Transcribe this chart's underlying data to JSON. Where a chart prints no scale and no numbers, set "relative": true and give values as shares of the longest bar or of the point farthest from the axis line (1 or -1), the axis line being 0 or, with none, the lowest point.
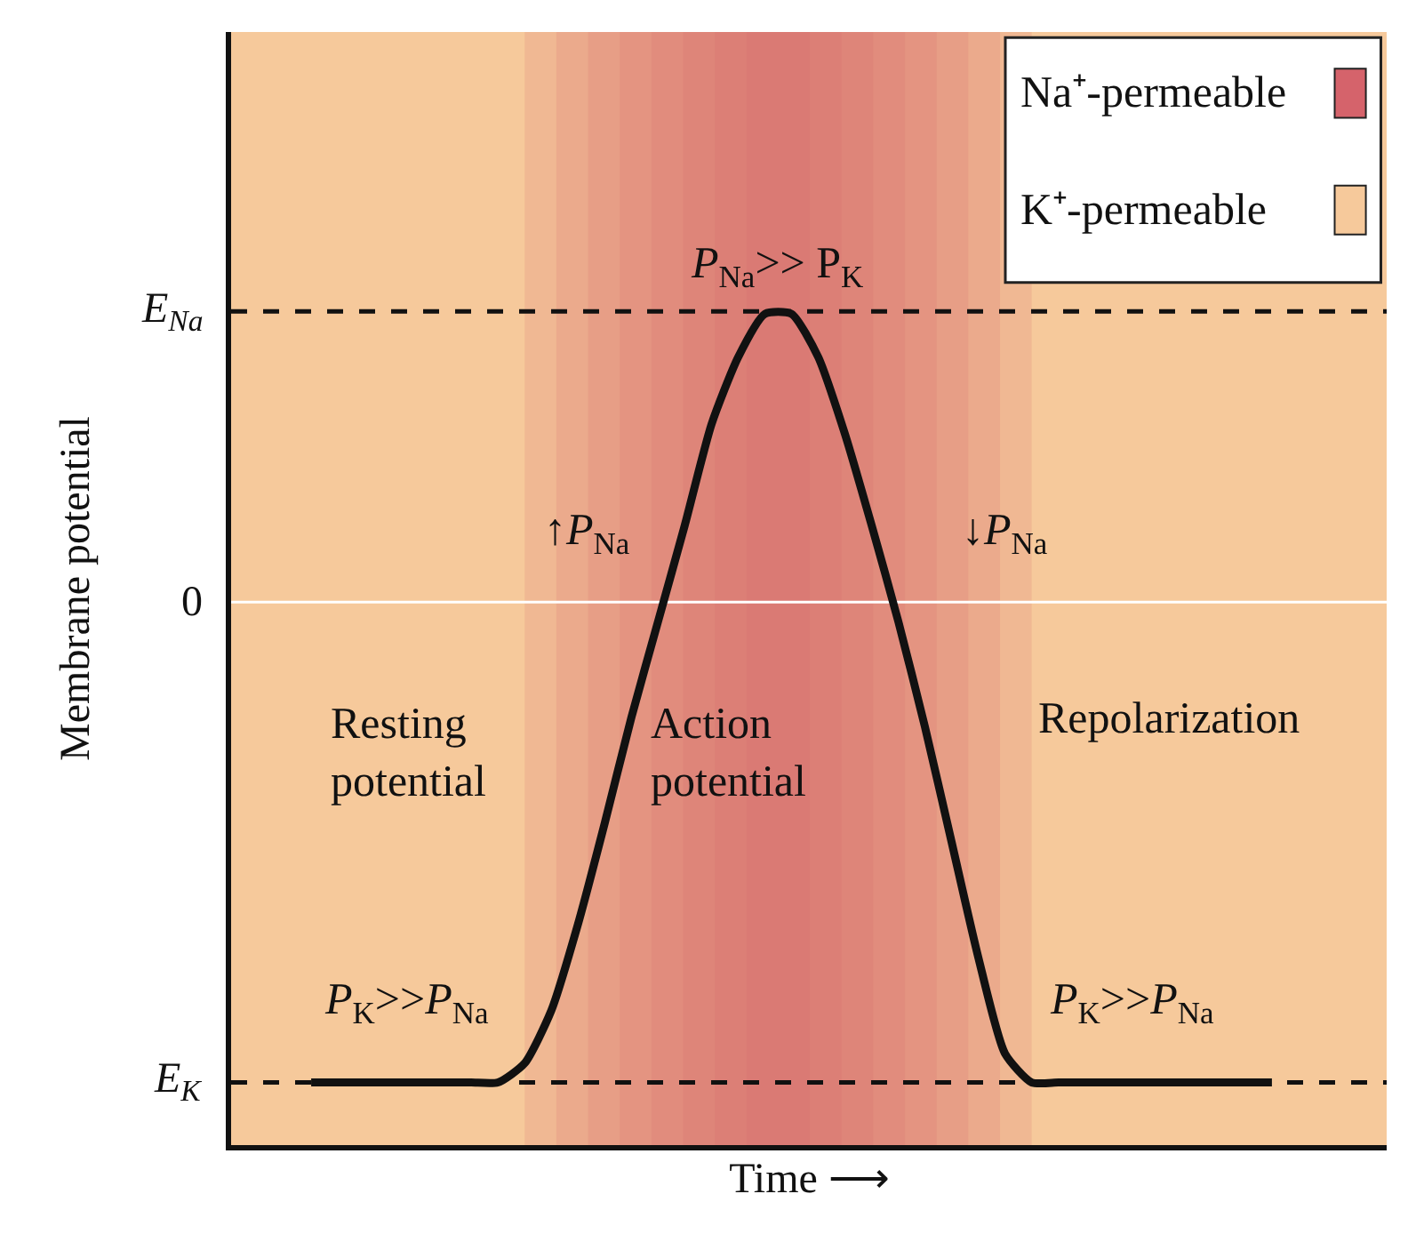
{
  "chart_data": {
    "type": "line",
    "relative": true,
    "xlabel": "Time ⟶",
    "ylabel": "Membrane potential",
    "categories": [
      null,
      null,
      null,
      null,
      null,
      null,
      null,
      null,
      null,
      null,
      null,
      null,
      null,
      null,
      null,
      null,
      null,
      null,
      null,
      null,
      null,
      null,
      null,
      null,
      null,
      null,
      null,
      null,
      null,
      null,
      null,
      null,
      null,
      null,
      null,
      null,
      null
    ],
    "series": [
      {
        "color": "#111111",
        "values": [
          -1,
          -1,
          -1,
          -1,
          -1,
          -1,
          -1,
          -1,
          -0.96,
          -0.85,
          -0.67,
          -0.46,
          -0.24,
          -0.04,
          0.16,
          0.37,
          0.51,
          0.6,
          0.6,
          0.51,
          0.35,
          0.16,
          -0.04,
          -0.26,
          -0.5,
          -0.74,
          -0.94,
          -1,
          -1,
          -1,
          -1,
          -1,
          -1,
          -1,
          -1,
          -1,
          -1
        ]
      }
    ],
    "ref_lines": [
      {
        "axis": "y",
        "value": 0.605,
        "label": "E$_{Na}$",
        "color": "#111111",
        "line_style": "dashed"
      },
      {
        "axis": "y",
        "value": 0,
        "label": "0",
        "color": "#ffffff",
        "line_style": "solid"
      },
      {
        "axis": "y",
        "value": -1,
        "label": "E$_{K}$",
        "color": "#111111",
        "line_style": "dashed"
      }
    ],
    "annotations": [
      "P$_{Na}$>> P$_{K}$",
      "↑P$_{Na}$",
      "↓P$_{Na}$",
      "Resting\npotential",
      "Action\npotential",
      "Repolarization",
      "P$_{K}$>>P$_{Na}$",
      "P$_{K}$>>P$_{Na}$",
      "Na⁺-permeable",
      "K⁺-permeable"
    ],
    "grid": false
  }
}
